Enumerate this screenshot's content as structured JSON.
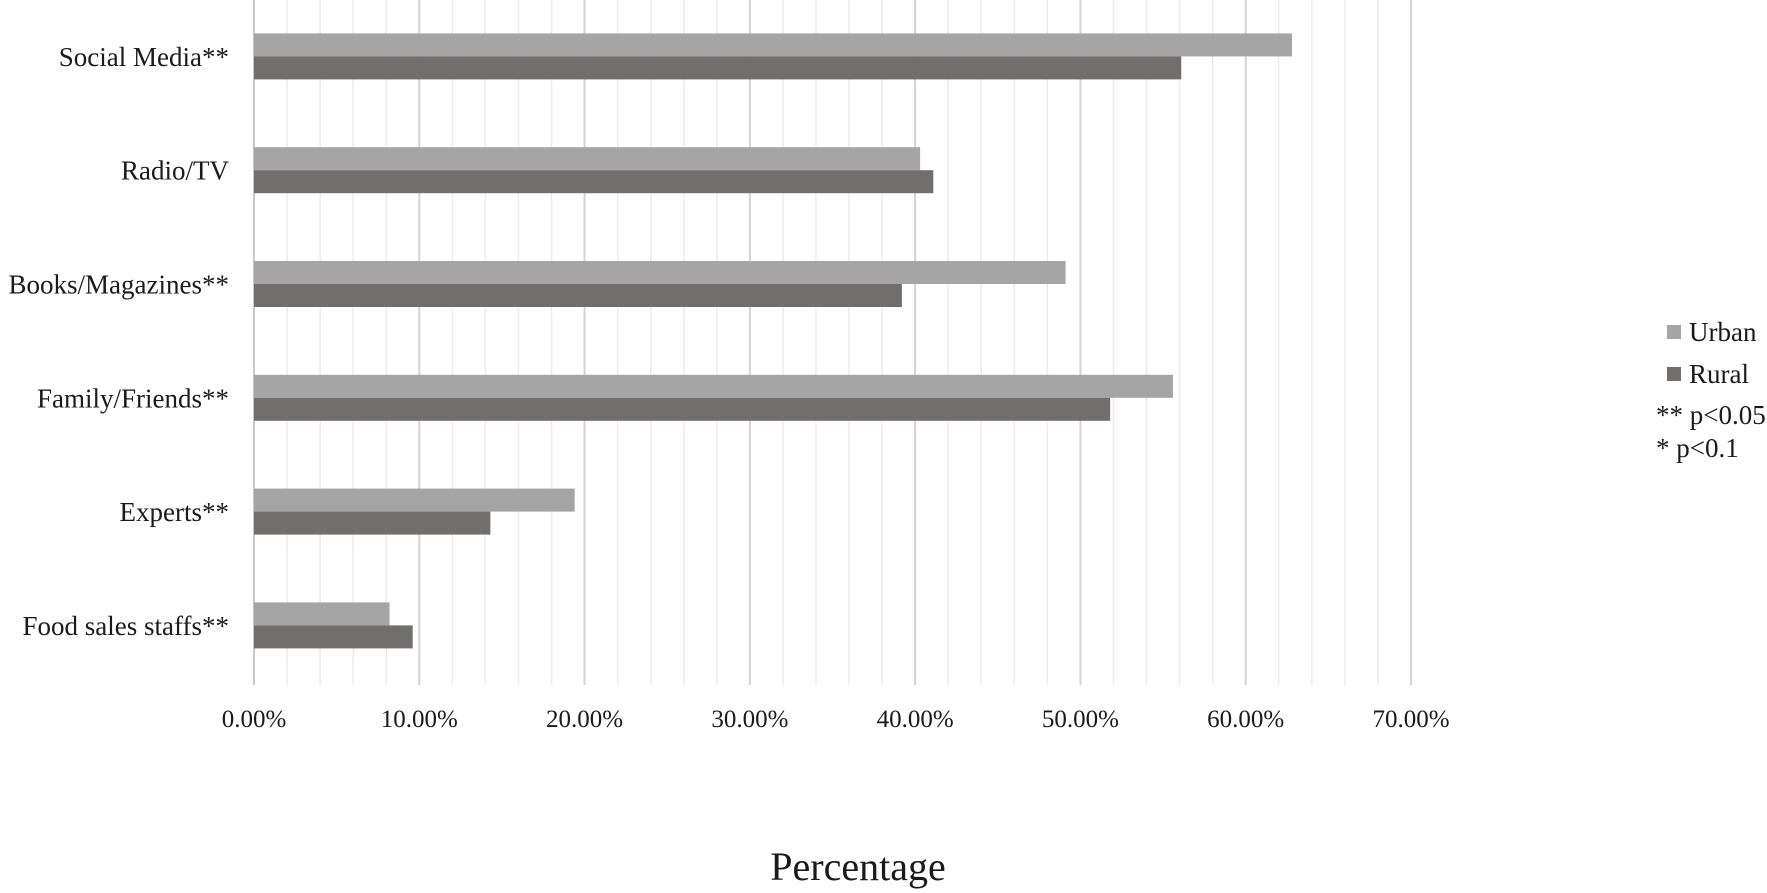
{
  "chart_data": {
    "type": "bar",
    "orientation": "horizontal",
    "categories": [
      "Social Media**",
      "Radio/TV",
      "Books/Magazines**",
      "Family/Friends**",
      "Experts**",
      "Food sales staffs**"
    ],
    "series": [
      {
        "name": "Urban",
        "color": "#a5a5a5",
        "values": [
          62.8,
          40.3,
          49.1,
          55.6,
          19.4,
          8.2
        ]
      },
      {
        "name": "Rural",
        "color": "#736e6e",
        "values": [
          56.1,
          41.1,
          39.2,
          51.8,
          14.3,
          9.6
        ]
      }
    ],
    "xlabel": "Percentage",
    "ylabel": "",
    "xlim": [
      0,
      70
    ],
    "xticks": [
      "0.00%",
      "10.00%",
      "20.00%",
      "30.00%",
      "40.00%",
      "50.00%",
      "60.00%",
      "70.00%"
    ],
    "grid": true,
    "legend_position": "right",
    "notes": [
      "** p<0.05",
      "* p<0.1"
    ]
  }
}
